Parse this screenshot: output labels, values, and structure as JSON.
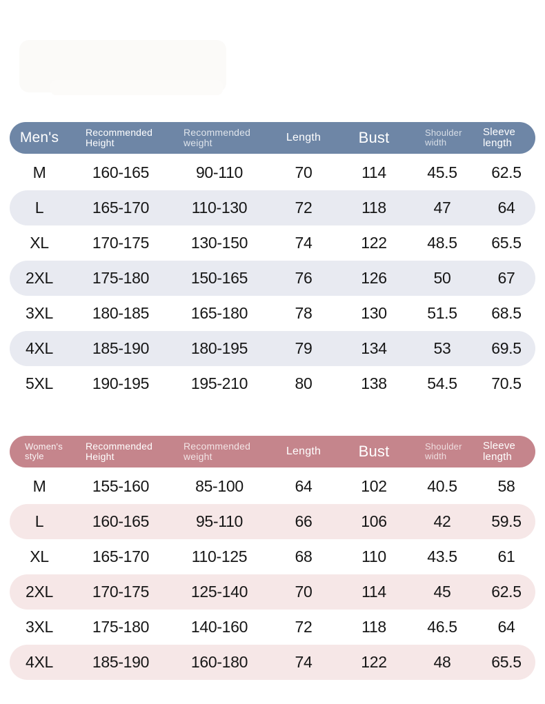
{
  "theme": {
    "men_header_bg": "#6e86a6",
    "men_stripe_bg": "#e8eaf1",
    "women_header_bg": "#c5858c",
    "women_stripe_bg": "#f6e7e7",
    "row_text_color": "#161616",
    "header_text_color": "#ffffff",
    "page_bg": "#ffffff"
  },
  "watermark": {
    "present": true,
    "legible_text": ""
  },
  "chart_data": [
    {
      "type": "table",
      "title": "Men's",
      "columns": [
        "Men's",
        "Recommended Height",
        "Recommended weight",
        "Length",
        "Bust",
        "Shoulder width",
        "Sleeve length"
      ],
      "column_lines": [
        [
          "Men's"
        ],
        [
          "Recommended",
          "Height"
        ],
        [
          "Recommended",
          "weight"
        ],
        [
          "Length"
        ],
        [
          "Bust"
        ],
        [
          "Shoulder",
          "width"
        ],
        [
          "Sleeve",
          "length"
        ]
      ],
      "rows": [
        [
          "M",
          "160-165",
          "90-110",
          "70",
          "114",
          "45.5",
          "62.5"
        ],
        [
          "L",
          "165-170",
          "110-130",
          "72",
          "118",
          "47",
          "64"
        ],
        [
          "XL",
          "170-175",
          "130-150",
          "74",
          "122",
          "48.5",
          "65.5"
        ],
        [
          "2XL",
          "175-180",
          "150-165",
          "76",
          "126",
          "50",
          "67"
        ],
        [
          "3XL",
          "180-185",
          "165-180",
          "78",
          "130",
          "51.5",
          "68.5"
        ],
        [
          "4XL",
          "185-190",
          "180-195",
          "79",
          "134",
          "53",
          "69.5"
        ],
        [
          "5XL",
          "190-195",
          "195-210",
          "80",
          "138",
          "54.5",
          "70.5"
        ]
      ]
    },
    {
      "type": "table",
      "title": "Women's style",
      "columns": [
        "Women's style",
        "Recommended Height",
        "Recommended weight",
        "Length",
        "Bust",
        "Shoulder width",
        "Sleeve length"
      ],
      "column_lines": [
        [
          "Women's",
          "style"
        ],
        [
          "Recommended",
          "Height"
        ],
        [
          "Recommended",
          "weight"
        ],
        [
          "Length"
        ],
        [
          "Bust"
        ],
        [
          "Shoulder",
          "width"
        ],
        [
          "Sleeve",
          "length"
        ]
      ],
      "rows": [
        [
          "M",
          "155-160",
          "85-100",
          "64",
          "102",
          "40.5",
          "58"
        ],
        [
          "L",
          "160-165",
          "95-110",
          "66",
          "106",
          "42",
          "59.5"
        ],
        [
          "XL",
          "165-170",
          "110-125",
          "68",
          "110",
          "43.5",
          "61"
        ],
        [
          "2XL",
          "170-175",
          "125-140",
          "70",
          "114",
          "45",
          "62.5"
        ],
        [
          "3XL",
          "175-180",
          "140-160",
          "72",
          "118",
          "46.5",
          "64"
        ],
        [
          "4XL",
          "185-190",
          "160-180",
          "74",
          "122",
          "48",
          "65.5"
        ]
      ]
    }
  ]
}
